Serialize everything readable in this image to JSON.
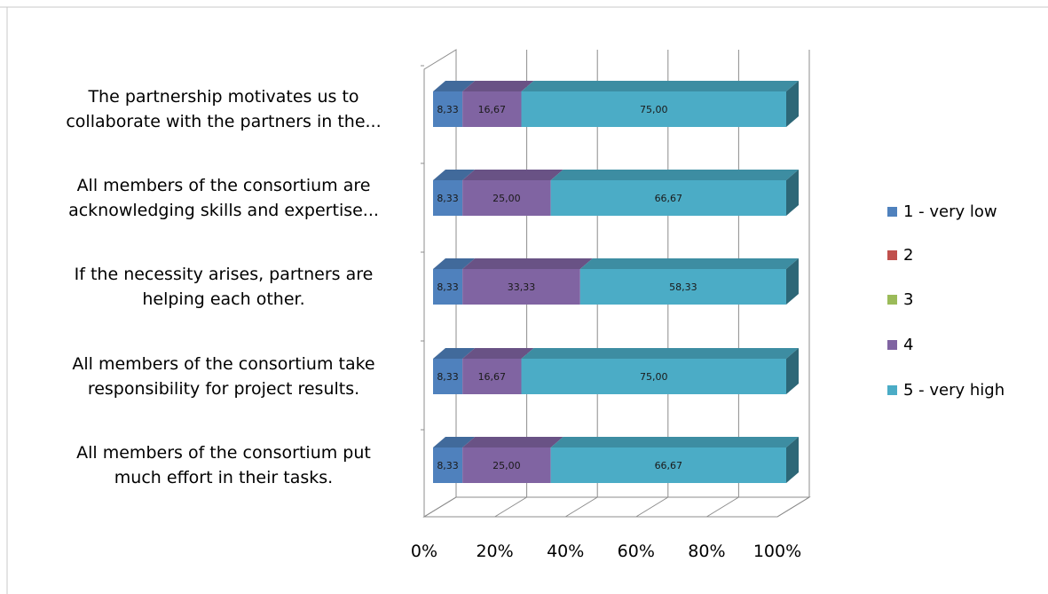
{
  "chart_data": {
    "type": "bar",
    "orientation": "horizontal",
    "stacked": "percent",
    "style": "3d",
    "categories": [
      "The partnership motivates us to collaborate with the partners in the...",
      "All members of the consortium are acknowledging skills and expertise...",
      "If the necessity arises, partners are helping each other.",
      "All members of the consortium take responsibility for project results.",
      "All members of the consortium put much effort in their tasks."
    ],
    "category_lines": [
      [
        "The partnership motivates us to",
        "collaborate with the partners in the..."
      ],
      [
        "All members of the consortium are",
        "acknowledging skills and expertise..."
      ],
      [
        "If the necessity arises, partners are",
        "helping each other."
      ],
      [
        "All members of the consortium take",
        "responsibility for project results."
      ],
      [
        "All members of the consortium put",
        "much effort in their tasks."
      ]
    ],
    "series": [
      {
        "name": "1 - very low",
        "color": "#4F81BD",
        "values": [
          8.33,
          8.33,
          8.33,
          8.33,
          8.33
        ],
        "labels": [
          "8,33",
          "8,33",
          "8,33",
          "8,33",
          "8,33"
        ]
      },
      {
        "name": "2",
        "color": "#C0504D",
        "values": [
          0,
          0,
          0,
          0,
          0
        ],
        "labels": [
          "",
          "",
          "",
          "",
          ""
        ]
      },
      {
        "name": "3",
        "color": "#9BBB59",
        "values": [
          0,
          0,
          0,
          0,
          0
        ],
        "labels": [
          "",
          "",
          "",
          "",
          ""
        ]
      },
      {
        "name": "4",
        "color": "#8064A2",
        "values": [
          16.67,
          25.0,
          33.33,
          16.67,
          25.0
        ],
        "labels": [
          "16,67",
          "25,00",
          "33,33",
          "16,67",
          "25,00"
        ]
      },
      {
        "name": "5 - very high",
        "color": "#4BACC6",
        "values": [
          75.0,
          66.67,
          58.33,
          75.0,
          66.67
        ],
        "labels": [
          "75,00",
          "66,67",
          "58,33",
          "75,00",
          "66,67"
        ]
      }
    ],
    "x_ticks": [
      "0%",
      "20%",
      "40%",
      "60%",
      "80%",
      "100%"
    ],
    "xlim": [
      0,
      100
    ],
    "grid": true,
    "legend": "right"
  }
}
